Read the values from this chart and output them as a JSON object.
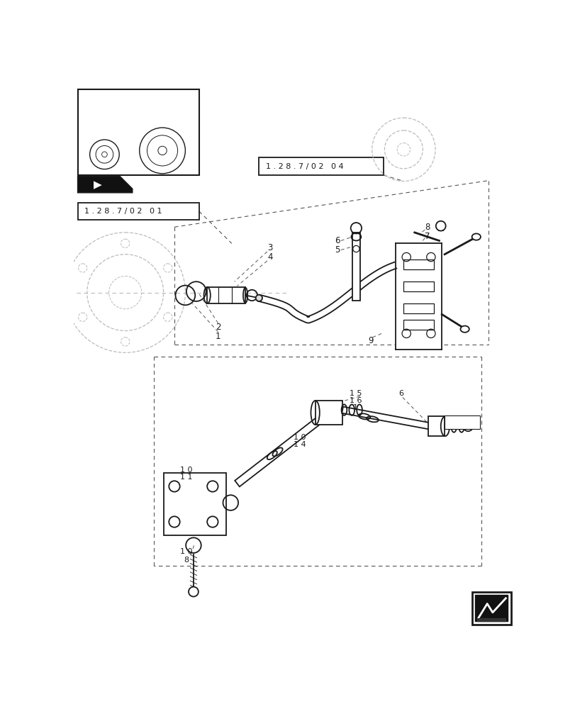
{
  "bg_color": "#ffffff",
  "fig_width": 8.12,
  "fig_height": 10.0,
  "dpi": 100,
  "label_fontsize": 8.5,
  "ref_fontsize": 8.5,
  "title_box1": "1 . 2 8 . 7 / 0 2   0 1",
  "title_box2": "1 . 2 8 . 7 / 0 2   0 4",
  "color_main": "#1a1a1a",
  "color_dashed": "#555555",
  "color_light": "#aaaaaa",
  "color_ghost": "#bbbbbb"
}
